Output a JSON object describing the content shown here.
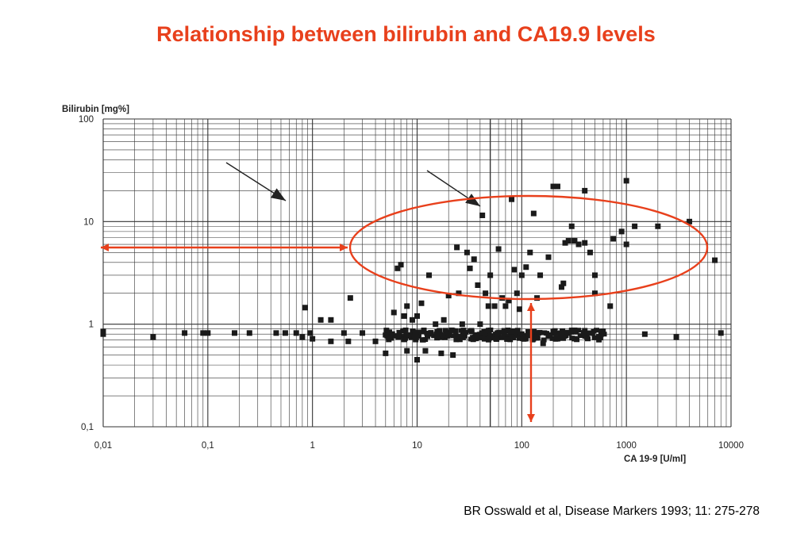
{
  "slide": {
    "title": "Relationship between bilirubin and CA19.9 levels",
    "citation": "BR Osswald et al,  Disease Markers 1993; 11: 275-278"
  },
  "colors": {
    "title": "#e8401c",
    "annotation": "#e8401c",
    "marker": "#1a1a1a",
    "grid": "#333333"
  },
  "chart_data": {
    "type": "scatter",
    "title": "",
    "xlabel": "CA 19-9 [U/ml]",
    "ylabel": "Bilirubin [mg%]",
    "x_scale": "log",
    "y_scale": "log",
    "xlim": [
      0.01,
      10000
    ],
    "ylim": [
      0.1,
      100
    ],
    "grid": true,
    "x_ticks": [
      {
        "value": 0.01,
        "label": "0,01"
      },
      {
        "value": 0.1,
        "label": "0,1"
      },
      {
        "value": 1,
        "label": "1"
      },
      {
        "value": 10,
        "label": "10"
      },
      {
        "value": 100,
        "label": "100"
      },
      {
        "value": 1000,
        "label": "1000"
      },
      {
        "value": 10000,
        "label": "10000"
      }
    ],
    "y_ticks": [
      {
        "value": 0.1,
        "label": "0,1"
      },
      {
        "value": 1,
        "label": "1"
      },
      {
        "value": 10,
        "label": "10"
      },
      {
        "value": 100,
        "label": "100"
      }
    ],
    "points": [
      [
        0.01,
        0.8
      ],
      [
        0.01,
        0.85
      ],
      [
        0.03,
        0.75
      ],
      [
        0.06,
        0.82
      ],
      [
        0.09,
        0.82
      ],
      [
        0.1,
        0.82
      ],
      [
        0.18,
        0.82
      ],
      [
        0.25,
        0.82
      ],
      [
        0.45,
        0.82
      ],
      [
        0.55,
        0.82
      ],
      [
        0.7,
        0.82
      ],
      [
        0.8,
        0.75
      ],
      [
        0.85,
        1.45
      ],
      [
        0.95,
        0.82
      ],
      [
        1.0,
        0.72
      ],
      [
        1.2,
        1.1
      ],
      [
        1.5,
        1.1
      ],
      [
        1.5,
        0.68
      ],
      [
        2.0,
        0.82
      ],
      [
        2.2,
        0.68
      ],
      [
        2.3,
        1.8
      ],
      [
        3.0,
        0.82
      ],
      [
        4.0,
        0.68
      ],
      [
        5.0,
        0.52
      ],
      [
        6.0,
        1.3
      ],
      [
        6.5,
        3.5
      ],
      [
        7.0,
        3.8
      ],
      [
        7.5,
        1.2
      ],
      [
        8.0,
        1.5
      ],
      [
        8.0,
        0.55
      ],
      [
        9.0,
        1.1
      ],
      [
        10.0,
        0.45
      ],
      [
        10.0,
        1.2
      ],
      [
        11.0,
        1.6
      ],
      [
        12.0,
        0.55
      ],
      [
        13.0,
        3.0
      ],
      [
        15.0,
        1.0
      ],
      [
        17.0,
        0.52
      ],
      [
        18.0,
        1.1
      ],
      [
        20.0,
        1.9
      ],
      [
        22.0,
        0.5
      ],
      [
        24.0,
        5.6
      ],
      [
        25.0,
        2.0
      ],
      [
        27.0,
        1.0
      ],
      [
        30.0,
        5.0
      ],
      [
        32.0,
        3.5
      ],
      [
        35.0,
        4.3
      ],
      [
        38.0,
        2.4
      ],
      [
        40.0,
        1.0
      ],
      [
        42.0,
        11.5
      ],
      [
        45.0,
        2.0
      ],
      [
        48.0,
        1.5
      ],
      [
        50.0,
        3.0
      ],
      [
        55.0,
        1.5
      ],
      [
        60.0,
        5.4
      ],
      [
        65.0,
        1.8
      ],
      [
        70.0,
        1.5
      ],
      [
        75.0,
        1.7
      ],
      [
        80.0,
        16.5
      ],
      [
        85.0,
        3.4
      ],
      [
        90.0,
        2.0
      ],
      [
        95.0,
        1.4
      ],
      [
        100.0,
        3.0
      ],
      [
        100.0,
        0.8
      ],
      [
        110.0,
        3.6
      ],
      [
        120.0,
        5.0
      ],
      [
        130.0,
        12.0
      ],
      [
        140.0,
        1.8
      ],
      [
        150.0,
        3.0
      ],
      [
        160.0,
        0.65
      ],
      [
        180.0,
        4.5
      ],
      [
        200.0,
        22.0
      ],
      [
        220.0,
        22.0
      ],
      [
        240.0,
        2.3
      ],
      [
        250.0,
        2.5
      ],
      [
        260.0,
        6.2
      ],
      [
        280.0,
        6.5
      ],
      [
        300.0,
        9.0
      ],
      [
        320.0,
        6.5
      ],
      [
        350.0,
        6.0
      ],
      [
        400.0,
        6.2
      ],
      [
        400.0,
        20.0
      ],
      [
        450.0,
        5.0
      ],
      [
        500.0,
        3.0
      ],
      [
        500.0,
        2.0
      ],
      [
        700.0,
        1.5
      ],
      [
        750.0,
        6.8
      ],
      [
        900.0,
        8.0
      ],
      [
        1000.0,
        6.0
      ],
      [
        1000.0,
        25.0
      ],
      [
        1200.0,
        9.0
      ],
      [
        1500.0,
        0.8
      ],
      [
        2000.0,
        9.0
      ],
      [
        3000.0,
        0.75
      ],
      [
        4000.0,
        10.0
      ],
      [
        7000.0,
        4.2
      ],
      [
        8000.0,
        0.82
      ]
    ]
  }
}
